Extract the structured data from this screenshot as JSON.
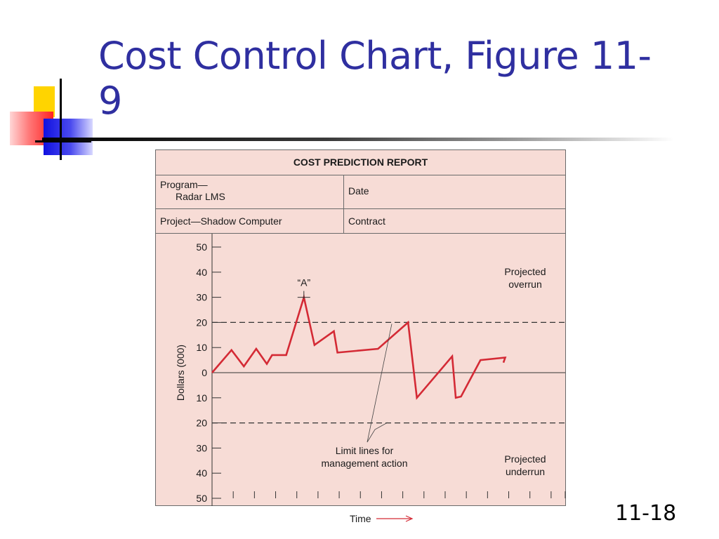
{
  "slide": {
    "title": "Cost Control Chart, Figure 11-9",
    "number": "11-18"
  },
  "report": {
    "heading": "COST PREDICTION REPORT",
    "program_label": "Program—",
    "program_value": "Radar LMS",
    "date_label": "Date",
    "project_label": "Project—Shadow Computer",
    "contract_label": "Contract"
  },
  "chart_data": {
    "type": "line",
    "xlabel": "Time",
    "ylabel": "Dollars (000)",
    "ylim": [
      -50,
      50
    ],
    "yticks": [
      50,
      40,
      30,
      20,
      10,
      0,
      -10,
      -20,
      -30,
      -40,
      -50
    ],
    "ytick_labels": [
      "50",
      "40",
      "30",
      "20",
      "10",
      "0",
      "10",
      "20",
      "30",
      "40",
      "50"
    ],
    "xlim": [
      0,
      100
    ],
    "xticks": [
      0,
      6,
      12,
      18,
      24,
      30,
      36,
      42,
      48,
      54,
      60,
      66,
      72,
      78,
      84,
      90,
      96,
      100
    ],
    "grid": false,
    "reference_lines": [
      {
        "y": 0,
        "style": "solid"
      },
      {
        "y": 20,
        "style": "dashed"
      },
      {
        "y": -20,
        "style": "dashed"
      }
    ],
    "series": [
      {
        "color": "#d42a35",
        "x": [
          0,
          5.5,
          9,
          12.5,
          15.5,
          17,
          21,
          26,
          29,
          34.5,
          35.5,
          47,
          55.5,
          58,
          68,
          69,
          70.5,
          76,
          83,
          82.5
        ],
        "y": [
          0,
          9,
          2.5,
          9.5,
          3.5,
          7,
          7,
          30,
          11,
          16.5,
          8,
          9.5,
          20,
          -10,
          6.5,
          -10,
          -9.5,
          5,
          6,
          4
        ]
      }
    ],
    "point_annotation": {
      "label": "“A”",
      "x": 26,
      "y": 30
    },
    "annotations": {
      "overrun": [
        "Projected",
        "overrun"
      ],
      "underrun": [
        "Projected",
        "underrun"
      ],
      "limit_lines": [
        "Limit lines for",
        "management action"
      ]
    }
  }
}
